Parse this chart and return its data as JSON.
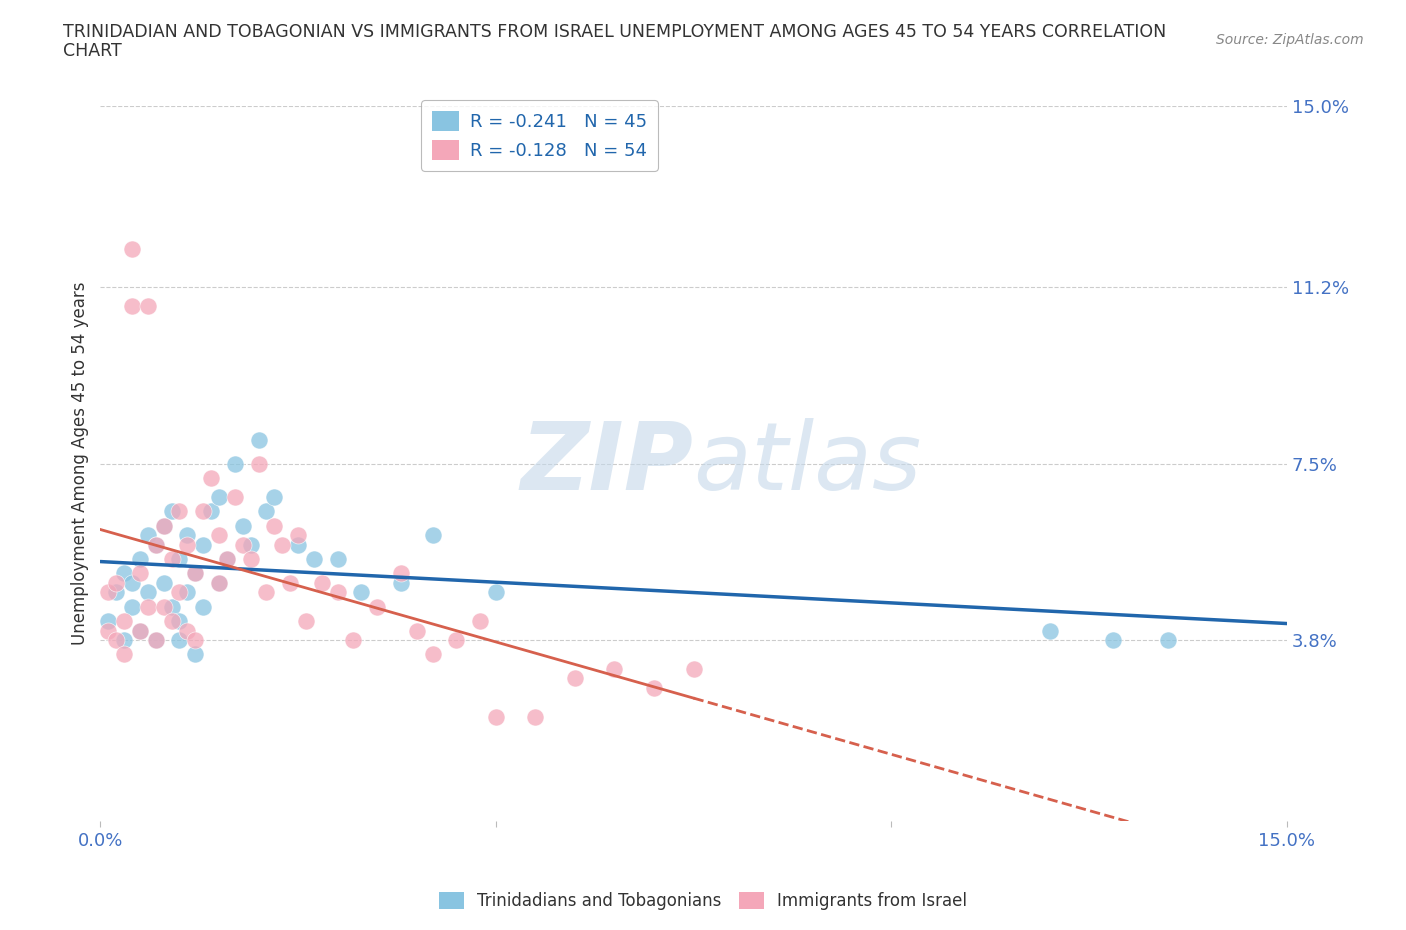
{
  "title_line1": "TRINIDADIAN AND TOBAGONIAN VS IMMIGRANTS FROM ISRAEL UNEMPLOYMENT AMONG AGES 45 TO 54 YEARS CORRELATION",
  "title_line2": "CHART",
  "source": "Source: ZipAtlas.com",
  "ylabel": "Unemployment Among Ages 45 to 54 years",
  "xlim": [
    0.0,
    0.15
  ],
  "ylim": [
    0.0,
    0.15
  ],
  "yticks": [
    0.038,
    0.075,
    0.112,
    0.15
  ],
  "ytick_labels": [
    "3.8%",
    "7.5%",
    "11.2%",
    "15.0%"
  ],
  "xticks": [
    0.0,
    0.05,
    0.1,
    0.15
  ],
  "xtick_labels": [
    "0.0%",
    "",
    "",
    "15.0%"
  ],
  "blue_R": -0.241,
  "blue_N": 45,
  "pink_R": -0.128,
  "pink_N": 54,
  "blue_color": "#89c4e1",
  "pink_color": "#f4a7b9",
  "blue_line_color": "#2166ac",
  "pink_line_color": "#d6604d",
  "legend_label_blue": "Trinidadians and Tobagonians",
  "legend_label_pink": "Immigrants from Israel",
  "watermark_zip": "ZIP",
  "watermark_atlas": "atlas",
  "background_color": "#ffffff",
  "grid_color": "#cccccc",
  "title_color": "#333333",
  "axis_label_color": "#333333",
  "tick_label_color": "#4472c4",
  "blue_x": [
    0.001,
    0.002,
    0.003,
    0.003,
    0.004,
    0.004,
    0.005,
    0.005,
    0.006,
    0.006,
    0.007,
    0.007,
    0.008,
    0.008,
    0.009,
    0.009,
    0.01,
    0.01,
    0.01,
    0.011,
    0.011,
    0.012,
    0.012,
    0.013,
    0.013,
    0.014,
    0.015,
    0.015,
    0.016,
    0.017,
    0.018,
    0.019,
    0.02,
    0.021,
    0.022,
    0.025,
    0.027,
    0.03,
    0.033,
    0.038,
    0.042,
    0.05,
    0.12,
    0.128,
    0.135
  ],
  "blue_y": [
    0.042,
    0.048,
    0.052,
    0.038,
    0.05,
    0.045,
    0.055,
    0.04,
    0.06,
    0.048,
    0.058,
    0.038,
    0.062,
    0.05,
    0.065,
    0.045,
    0.055,
    0.042,
    0.038,
    0.06,
    0.048,
    0.052,
    0.035,
    0.058,
    0.045,
    0.065,
    0.068,
    0.05,
    0.055,
    0.075,
    0.062,
    0.058,
    0.08,
    0.065,
    0.068,
    0.058,
    0.055,
    0.055,
    0.048,
    0.05,
    0.06,
    0.048,
    0.04,
    0.038,
    0.038
  ],
  "pink_x": [
    0.001,
    0.001,
    0.002,
    0.002,
    0.003,
    0.003,
    0.004,
    0.004,
    0.005,
    0.005,
    0.006,
    0.006,
    0.007,
    0.007,
    0.008,
    0.008,
    0.009,
    0.009,
    0.01,
    0.01,
    0.011,
    0.011,
    0.012,
    0.012,
    0.013,
    0.014,
    0.015,
    0.015,
    0.016,
    0.017,
    0.018,
    0.019,
    0.02,
    0.021,
    0.022,
    0.023,
    0.024,
    0.025,
    0.026,
    0.028,
    0.03,
    0.032,
    0.035,
    0.038,
    0.04,
    0.042,
    0.045,
    0.048,
    0.05,
    0.055,
    0.06,
    0.065,
    0.07,
    0.075
  ],
  "pink_y": [
    0.048,
    0.04,
    0.05,
    0.038,
    0.042,
    0.035,
    0.12,
    0.108,
    0.052,
    0.04,
    0.108,
    0.045,
    0.058,
    0.038,
    0.062,
    0.045,
    0.055,
    0.042,
    0.065,
    0.048,
    0.058,
    0.04,
    0.052,
    0.038,
    0.065,
    0.072,
    0.06,
    0.05,
    0.055,
    0.068,
    0.058,
    0.055,
    0.075,
    0.048,
    0.062,
    0.058,
    0.05,
    0.06,
    0.042,
    0.05,
    0.048,
    0.038,
    0.045,
    0.052,
    0.04,
    0.035,
    0.038,
    0.042,
    0.022,
    0.022,
    0.03,
    0.032,
    0.028,
    0.032
  ]
}
